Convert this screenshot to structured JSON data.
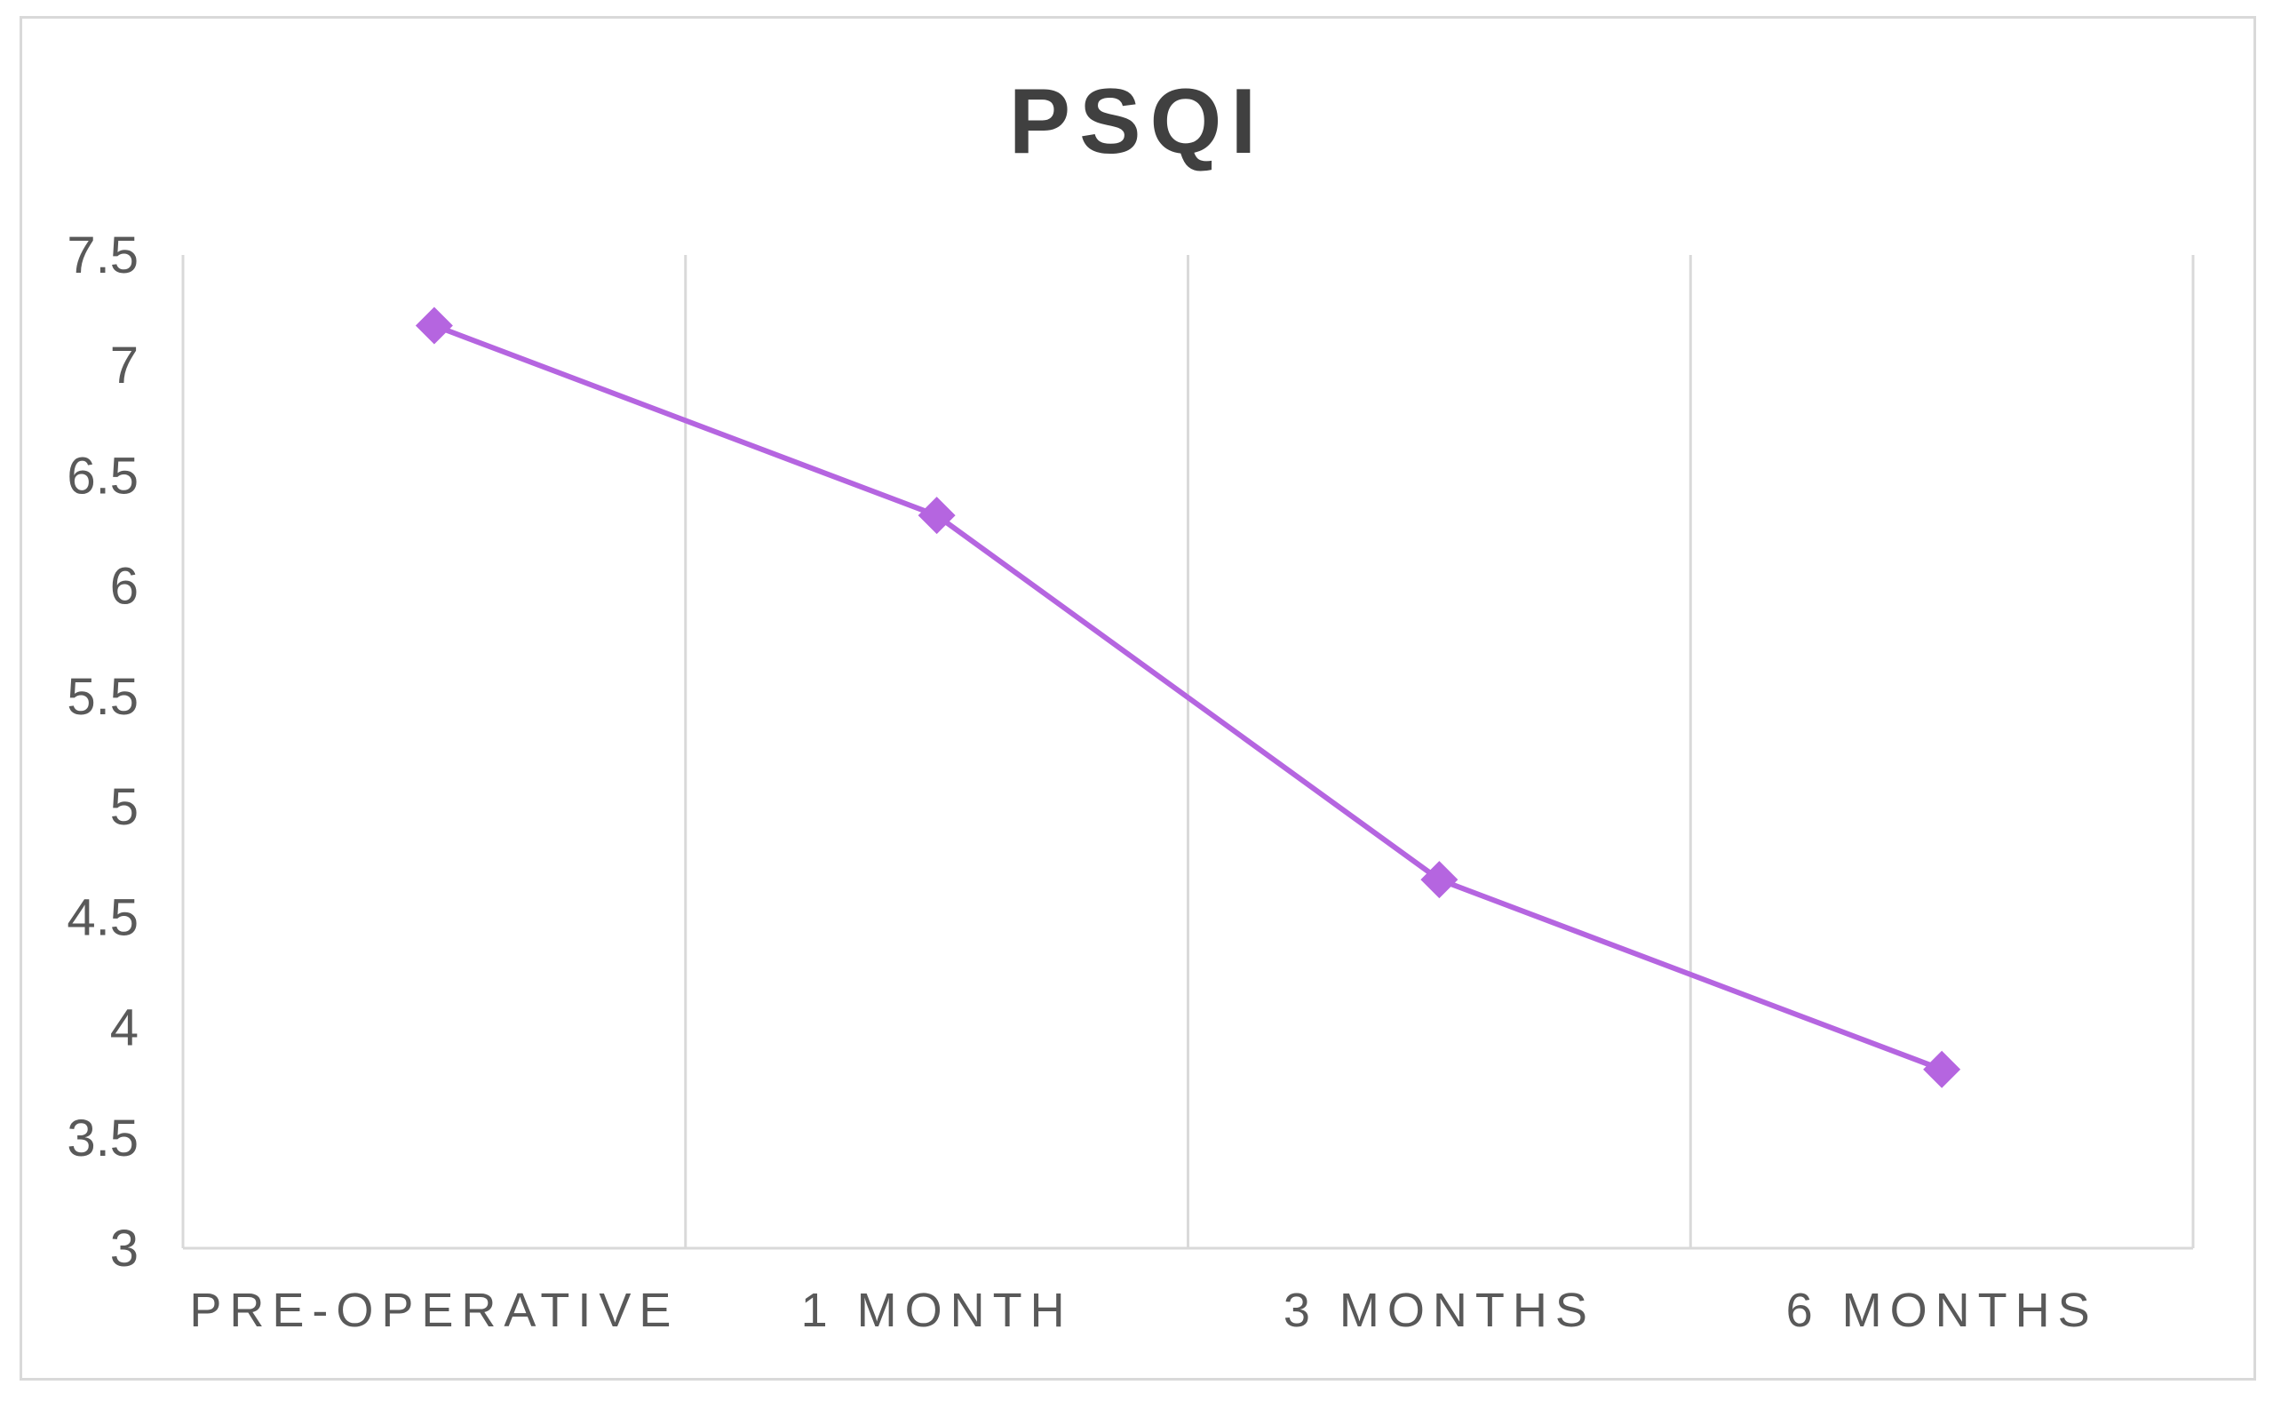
{
  "chart_data": {
    "type": "line",
    "title": "PSQI",
    "xlabel": "",
    "ylabel": "",
    "categories": [
      "PRE-OPERATIVE",
      "1 MONTH",
      "3 MONTHS",
      "6 MONTHS"
    ],
    "series": [
      {
        "values": [
          7.18,
          6.32,
          4.67,
          3.81
        ],
        "color": "#b565e0",
        "marker": "diamond"
      }
    ],
    "ylim": [
      3,
      7.5
    ],
    "yticks": [
      "3",
      "3.5",
      "4",
      "4.5",
      "5",
      "5.5",
      "6",
      "6.5",
      "7",
      "7.5"
    ],
    "grid": "vertical",
    "legend": "none"
  }
}
